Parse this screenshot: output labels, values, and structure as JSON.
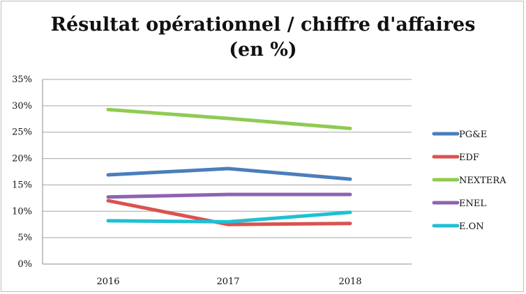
{
  "chart_data": {
    "type": "line",
    "title_line1": "Résultat opérationnel / chiffre d'affaires",
    "title_line2": "(en %)",
    "categories": [
      "2016",
      "2017",
      "2018"
    ],
    "ylim": [
      0,
      35
    ],
    "yticks": [
      "0%",
      "5%",
      "10%",
      "15%",
      "20%",
      "25%",
      "30%",
      "35%"
    ],
    "grid": true,
    "legend_position": "right",
    "series": [
      {
        "name": "PG&E",
        "color": "#4a7ebb",
        "values": [
          16.9,
          18.1,
          16.1
        ]
      },
      {
        "name": "EDF",
        "color": "#d9534f",
        "values": [
          12.0,
          7.5,
          7.7
        ]
      },
      {
        "name": "NEXTERA",
        "color": "#8fcb52",
        "values": [
          29.3,
          27.6,
          25.7
        ]
      },
      {
        "name": "ENEL",
        "color": "#8e63b0",
        "values": [
          12.7,
          13.2,
          13.2
        ]
      },
      {
        "name": "E.ON",
        "color": "#1fc0d4",
        "values": [
          8.2,
          8.0,
          9.8
        ]
      }
    ]
  }
}
